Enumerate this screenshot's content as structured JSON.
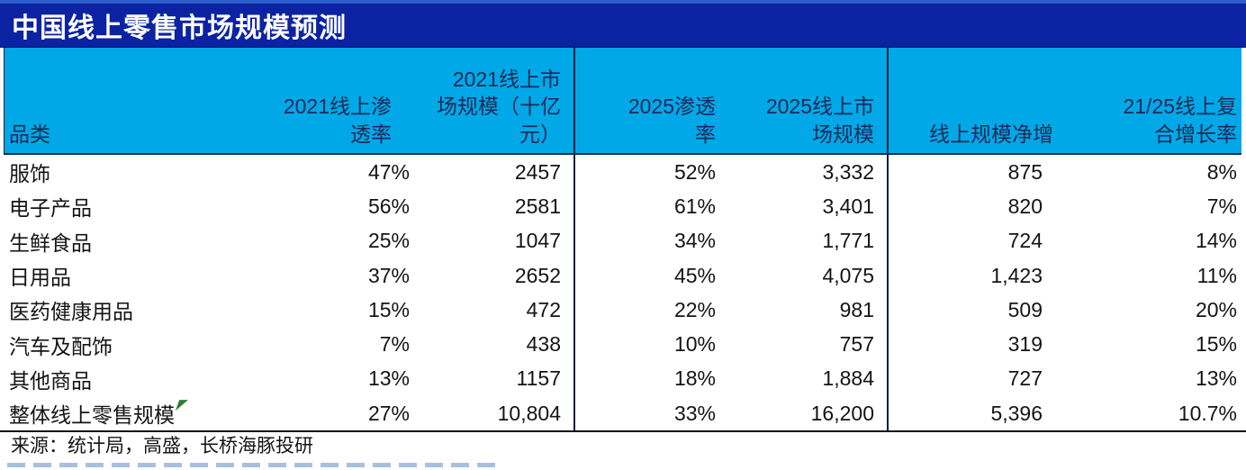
{
  "title": "中国线上零售市场规模预测",
  "colors": {
    "title_bar_bg": "#0b23a2",
    "top_strip": "#2d5ccb",
    "header_bg": "#00a8e8",
    "header_text": "#1b2a55",
    "divider": "#101c3c",
    "body_text": "#141414",
    "marker_green": "#2e7d32"
  },
  "table": {
    "headers": [
      "品类",
      "2021线上渗\n透率",
      "2021线上市\n场规模（十亿\n元）",
      "2025渗透\n率",
      "2025线上市\n场规模",
      "线上规模净增",
      "21/25线上复\n合增长率"
    ],
    "rows": [
      [
        "服饰",
        "47%",
        "2457",
        "52%",
        "3,332",
        "875",
        "8%"
      ],
      [
        "电子产品",
        "56%",
        "2581",
        "61%",
        "3,401",
        "820",
        "7%"
      ],
      [
        "生鲜食品",
        "25%",
        "1047",
        "34%",
        "1,771",
        "724",
        "14%"
      ],
      [
        "日用品",
        "37%",
        "2652",
        "45%",
        "4,075",
        "1,423",
        "11%"
      ],
      [
        "医药健康用品",
        "15%",
        "472",
        "22%",
        "981",
        "509",
        "20%"
      ],
      [
        "汽车及配饰",
        "7%",
        "438",
        "10%",
        "757",
        "319",
        "15%"
      ],
      [
        "其他商品",
        "13%",
        "1157",
        "18%",
        "1,884",
        "727",
        "13%"
      ],
      [
        "整体线上零售规模",
        "27%",
        "10,804",
        "33%",
        "16,200",
        "5,396",
        "10.7%"
      ]
    ]
  },
  "source": "来源：统计局，高盛，长桥海豚投研",
  "chart_data": {
    "type": "table",
    "title": "中国线上零售市场规模预测",
    "columns": [
      "品类",
      "2021线上渗透率",
      "2021线上市场规模（十亿元）",
      "2025渗透率",
      "2025线上市场规模",
      "线上规模净增",
      "21/25线上复合增长率"
    ],
    "rows": [
      {
        "category": "服饰",
        "pen_2021": "47%",
        "size_2021": 2457,
        "pen_2025": "52%",
        "size_2025": 3332,
        "net_increase": 875,
        "cagr": "8%"
      },
      {
        "category": "电子产品",
        "pen_2021": "56%",
        "size_2021": 2581,
        "pen_2025": "61%",
        "size_2025": 3401,
        "net_increase": 820,
        "cagr": "7%"
      },
      {
        "category": "生鲜食品",
        "pen_2021": "25%",
        "size_2021": 1047,
        "pen_2025": "34%",
        "size_2025": 1771,
        "net_increase": 724,
        "cagr": "14%"
      },
      {
        "category": "日用品",
        "pen_2021": "37%",
        "size_2021": 2652,
        "pen_2025": "45%",
        "size_2025": 4075,
        "net_increase": 1423,
        "cagr": "11%"
      },
      {
        "category": "医药健康用品",
        "pen_2021": "15%",
        "size_2021": 472,
        "pen_2025": "22%",
        "size_2025": 981,
        "net_increase": 509,
        "cagr": "20%"
      },
      {
        "category": "汽车及配饰",
        "pen_2021": "7%",
        "size_2021": 438,
        "pen_2025": "10%",
        "size_2025": 757,
        "net_increase": 319,
        "cagr": "15%"
      },
      {
        "category": "其他商品",
        "pen_2021": "13%",
        "size_2021": 1157,
        "pen_2025": "18%",
        "size_2025": 1884,
        "net_increase": 727,
        "cagr": "13%"
      },
      {
        "category": "整体线上零售规模",
        "pen_2021": "27%",
        "size_2021": 10804,
        "pen_2025": "33%",
        "size_2025": 16200,
        "net_increase": 5396,
        "cagr": "10.7%"
      }
    ],
    "source": "来源：统计局，高盛，长桥海豚投研"
  }
}
